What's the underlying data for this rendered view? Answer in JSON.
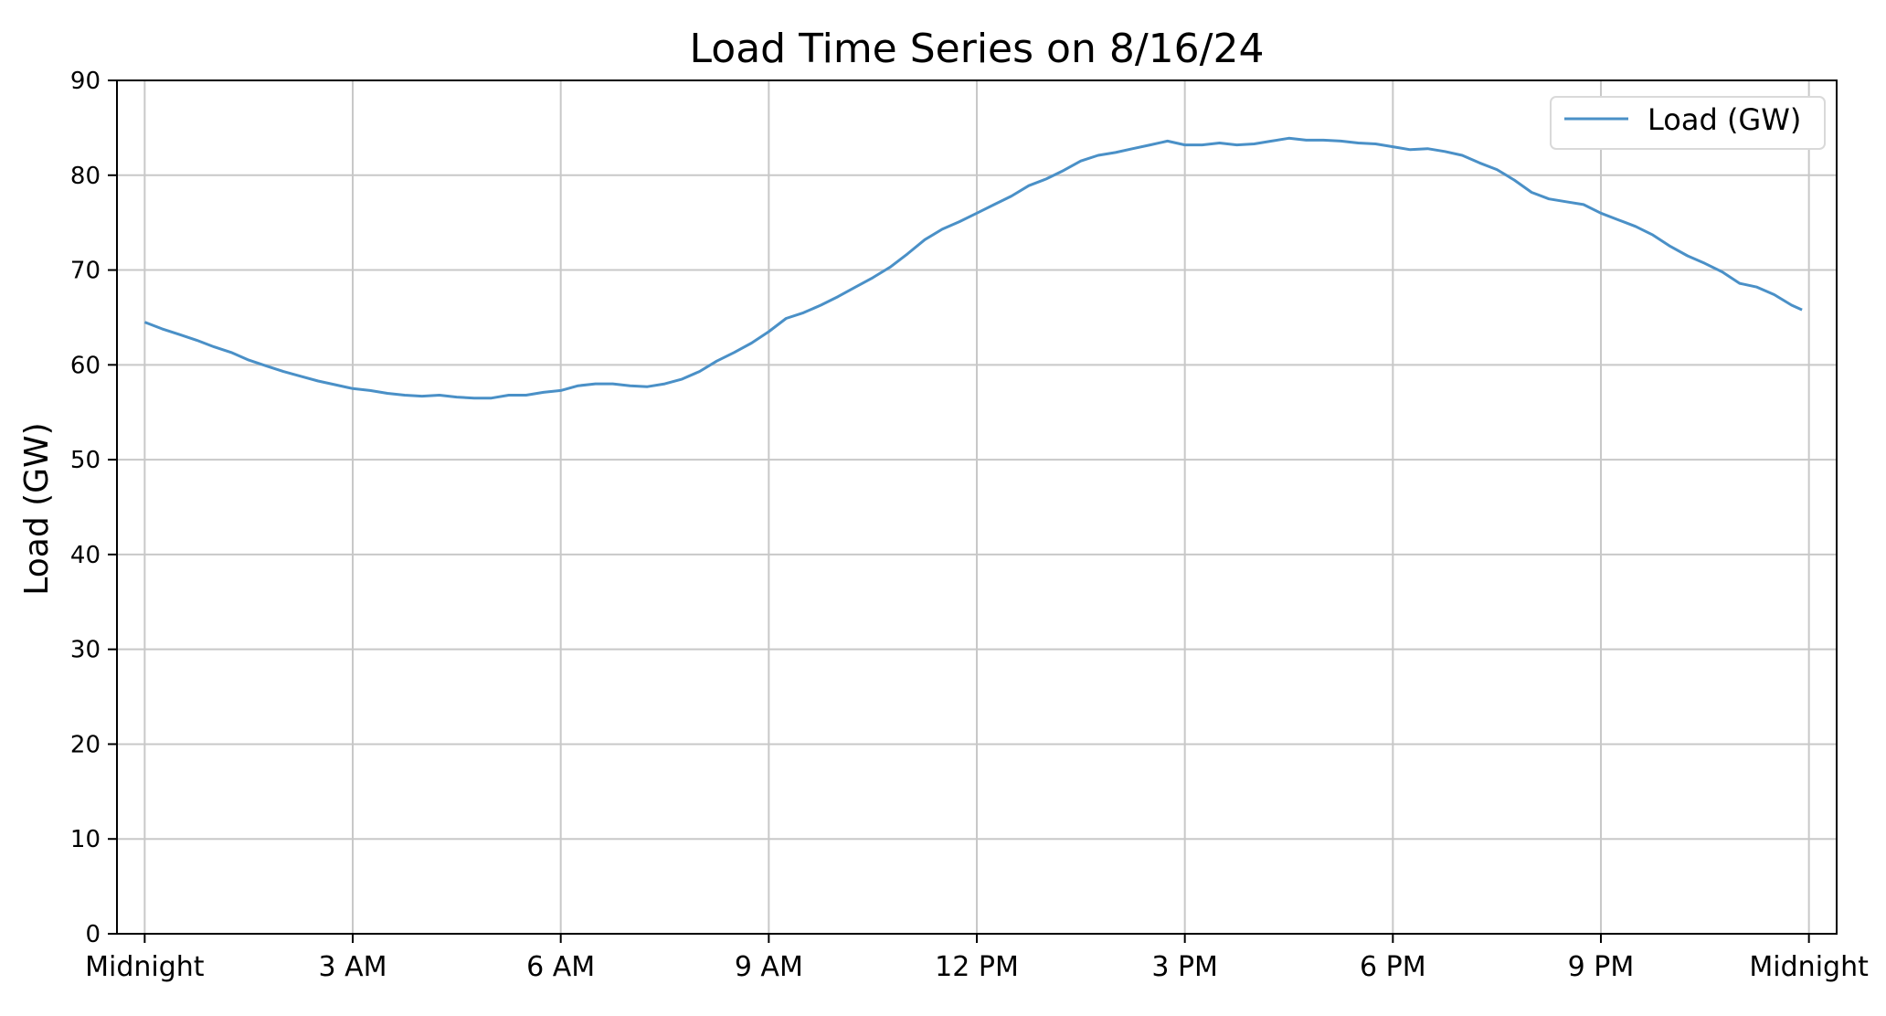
{
  "colors": {
    "series": "#4a90c7",
    "grid": "#c8c8c8",
    "axis": "#000000",
    "legend_border": "#d9d9d9"
  },
  "chart_data": {
    "type": "line",
    "title": "Load Time Series on 8/16/24",
    "xlabel": "",
    "ylabel": "Load (GW)",
    "ylim": [
      0,
      90
    ],
    "yticks": [
      0,
      10,
      20,
      30,
      40,
      50,
      60,
      70,
      80,
      90
    ],
    "xlim": [
      -0.4,
      24.4
    ],
    "xticks": [
      {
        "value": 0,
        "label": "Midnight"
      },
      {
        "value": 3,
        "label": "3 AM"
      },
      {
        "value": 6,
        "label": "6 AM"
      },
      {
        "value": 9,
        "label": "9 AM"
      },
      {
        "value": 12,
        "label": "12 PM"
      },
      {
        "value": 15,
        "label": "3 PM"
      },
      {
        "value": 18,
        "label": "6 PM"
      },
      {
        "value": 21,
        "label": "9 PM"
      },
      {
        "value": 24,
        "label": "Midnight"
      }
    ],
    "grid": true,
    "legend": {
      "position": "top-right",
      "entries": [
        "Load (GW)"
      ]
    },
    "series": [
      {
        "name": "Load (GW)",
        "x": [
          0,
          0.25,
          0.5,
          0.75,
          1,
          1.25,
          1.5,
          1.75,
          2,
          2.25,
          2.5,
          2.75,
          3,
          3.25,
          3.5,
          3.75,
          4,
          4.25,
          4.5,
          4.75,
          5,
          5.25,
          5.5,
          5.75,
          6,
          6.25,
          6.5,
          6.75,
          7,
          7.25,
          7.5,
          7.75,
          8,
          8.25,
          8.5,
          8.75,
          9,
          9.25,
          9.5,
          9.75,
          10,
          10.25,
          10.5,
          10.75,
          11,
          11.25,
          11.5,
          11.75,
          12,
          12.25,
          12.5,
          12.75,
          13,
          13.25,
          13.5,
          13.75,
          14,
          14.25,
          14.5,
          14.75,
          15,
          15.25,
          15.5,
          15.75,
          16,
          16.25,
          16.5,
          16.75,
          17,
          17.25,
          17.5,
          17.75,
          18,
          18.25,
          18.5,
          18.75,
          19,
          19.25,
          19.5,
          19.75,
          20,
          20.25,
          20.5,
          20.75,
          21,
          21.25,
          21.5,
          21.75,
          22,
          22.25,
          22.5,
          22.75,
          23,
          23.25,
          23.5,
          23.75,
          23.9
        ],
        "values": [
          64.5,
          63.8,
          63.2,
          62.6,
          61.9,
          61.3,
          60.5,
          59.9,
          59.3,
          58.8,
          58.3,
          57.9,
          57.5,
          57.3,
          57.0,
          56.8,
          56.7,
          56.8,
          56.6,
          56.5,
          56.5,
          56.8,
          56.8,
          57.1,
          57.3,
          57.8,
          58.0,
          58.0,
          57.8,
          57.7,
          58.0,
          58.5,
          59.3,
          60.4,
          61.3,
          62.3,
          63.5,
          64.9,
          65.5,
          66.3,
          67.2,
          68.2,
          69.2,
          70.3,
          71.7,
          73.2,
          74.3,
          75.1,
          76.0,
          76.9,
          77.8,
          78.9,
          79.6,
          80.5,
          81.5,
          82.1,
          82.4,
          82.8,
          83.2,
          83.6,
          83.2,
          83.2,
          83.4,
          83.2,
          83.3,
          83.6,
          83.9,
          83.7,
          83.7,
          83.6,
          83.4,
          83.3,
          83.0,
          82.7,
          82.8,
          82.5,
          82.1,
          81.3,
          80.6,
          79.5,
          78.2,
          77.5,
          77.2,
          76.9,
          76.0,
          75.3,
          74.6,
          73.7,
          72.5,
          71.5,
          70.7,
          69.8,
          68.6,
          68.2,
          67.4,
          66.3,
          65.8
        ]
      }
    ]
  }
}
